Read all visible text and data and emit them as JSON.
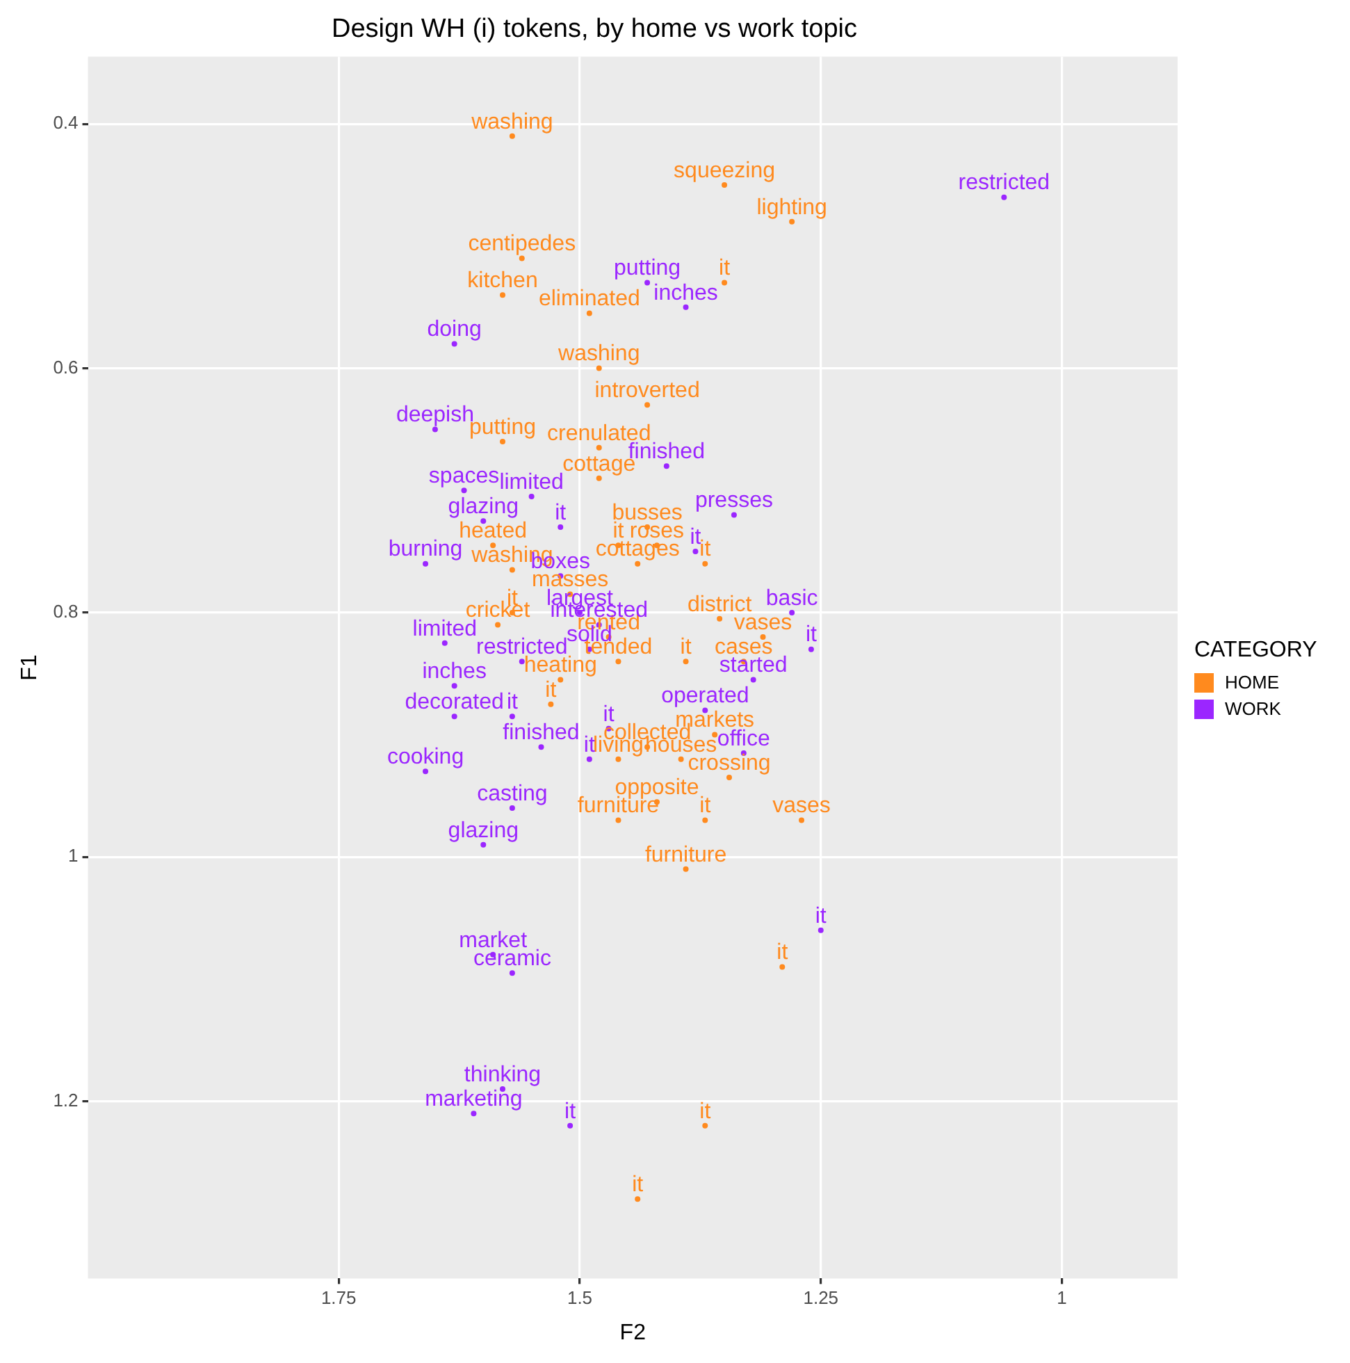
{
  "chart_data": {
    "type": "scatter",
    "title": "Design WH (i) tokens, by home vs work topic",
    "xlabel": "F2",
    "ylabel": "F1",
    "legend_title": "CATEGORY",
    "legend": "right",
    "grid": true,
    "xlim": [
      2.01,
      0.88
    ],
    "xticks": [
      1.75,
      1.5,
      1.25,
      1.0
    ],
    "ylim": [
      1.345,
      0.345
    ],
    "yticks": [
      0.4,
      0.6,
      0.8,
      1.0,
      1.2
    ],
    "series": [
      {
        "name": "HOME",
        "color": "#ff8a1e",
        "x": [
          1.57,
          1.35,
          1.28,
          1.56,
          1.35,
          1.58,
          1.49,
          1.48,
          1.43,
          1.58,
          1.48,
          1.48,
          1.59,
          1.57,
          1.43,
          1.46,
          1.42,
          1.37,
          1.44,
          1.51,
          1.57,
          1.355,
          1.31,
          1.585,
          1.47,
          1.46,
          1.39,
          1.33,
          1.52,
          1.53,
          1.43,
          1.36,
          1.46,
          1.395,
          1.345,
          1.42,
          1.46,
          1.37,
          1.27,
          1.39,
          1.29,
          1.37,
          1.44
        ],
        "values": [
          0.41,
          0.45,
          0.48,
          0.51,
          0.53,
          0.54,
          0.555,
          0.6,
          0.63,
          0.66,
          0.665,
          0.69,
          0.745,
          0.765,
          0.73,
          0.745,
          0.745,
          0.76,
          0.76,
          0.785,
          0.8,
          0.805,
          0.82,
          0.81,
          0.82,
          0.84,
          0.84,
          0.84,
          0.855,
          0.875,
          0.91,
          0.9,
          0.92,
          0.92,
          0.935,
          0.955,
          0.97,
          0.97,
          0.97,
          1.01,
          1.09,
          1.22,
          1.28
        ],
        "value_labels": [
          "washing",
          "squeezing",
          "lighting",
          "centipedes",
          "it",
          "kitchen",
          "eliminated",
          "washing",
          "introverted",
          "putting",
          "crenulated",
          "cottage",
          "heated",
          "washing",
          "busses",
          "it",
          "roses",
          "it",
          "cottages",
          "masses",
          "it",
          "district",
          "vases",
          "cricket",
          "rented",
          "tended",
          "it",
          "cases",
          "heating",
          "it",
          "collected",
          "markets",
          "living",
          "houses",
          "crossing",
          "opposite",
          "furniture",
          "it",
          "vases",
          "furniture",
          "it",
          "it",
          "it"
        ]
      },
      {
        "name": "WORK",
        "color": "#9b26ff",
        "x": [
          1.06,
          1.43,
          1.39,
          1.63,
          1.65,
          1.41,
          1.62,
          1.55,
          1.6,
          1.52,
          1.34,
          1.38,
          1.52,
          1.66,
          1.5,
          1.48,
          1.28,
          1.26,
          1.64,
          1.56,
          1.49,
          1.32,
          1.63,
          1.63,
          1.57,
          1.37,
          1.54,
          1.47,
          1.49,
          1.33,
          1.66,
          1.57,
          1.6,
          1.25,
          1.59,
          1.57,
          1.58,
          1.61,
          1.51
        ],
        "values": [
          0.46,
          0.53,
          0.55,
          0.58,
          0.65,
          0.68,
          0.7,
          0.705,
          0.725,
          0.73,
          0.72,
          0.75,
          0.77,
          0.76,
          0.8,
          0.81,
          0.8,
          0.83,
          0.825,
          0.84,
          0.83,
          0.855,
          0.86,
          0.885,
          0.885,
          0.88,
          0.91,
          0.895,
          0.92,
          0.915,
          0.93,
          0.96,
          0.99,
          1.06,
          1.08,
          1.095,
          1.19,
          1.21,
          1.22
        ],
        "value_labels": [
          "restricted",
          "putting",
          "inches",
          "doing",
          "deepish",
          "finished",
          "spaces",
          "limited",
          "glazing",
          "it",
          "presses",
          "it",
          "boxes",
          "burning",
          "largest",
          "interested",
          "basic",
          "it",
          "limited",
          "restricted",
          "solid",
          "started",
          "inches",
          "decorated",
          "it",
          "operated",
          "finished",
          "it",
          "it",
          "office",
          "cooking",
          "casting",
          "glazing",
          "it",
          "market",
          "ceramic",
          "thinking",
          "marketing",
          "it"
        ]
      }
    ]
  }
}
